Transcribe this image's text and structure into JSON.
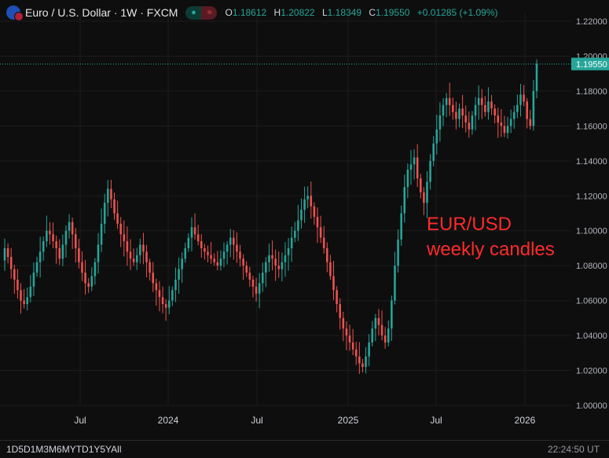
{
  "header": {
    "title": "Euro / U.S. Dollar · 1W · FXCM",
    "pill_buy": "●",
    "pill_sell": "≈",
    "ohlc": [
      {
        "label": "O",
        "value": "1.18612"
      },
      {
        "label": "H",
        "value": "1.20822"
      },
      {
        "label": "L",
        "value": "1.18349"
      },
      {
        "label": "C",
        "value": "1.19550"
      },
      {
        "label": "",
        "value": "+0.01285 (+1.09%)"
      }
    ]
  },
  "annotation": {
    "line1": "EUR/USD",
    "line2": "weekly candles"
  },
  "price_label": "1.19550",
  "bottom": {
    "ranges": "1D5D1M3M6MYTD1Y5YAll",
    "clock": "22:24:50 UT"
  },
  "colors": {
    "up": "#26a69a",
    "down": "#ef5350",
    "background": "#0e0e0e",
    "grid": "#1c1c1c",
    "annotation": "#ff2a2a"
  },
  "chart_data": {
    "type": "candlestick",
    "interval": "1W",
    "ylim": [
      1.0,
      1.22
    ],
    "y_ticks": [
      "1.22000",
      "1.20000",
      "1.18000",
      "1.16000",
      "1.14000",
      "1.12000",
      "1.10000",
      "1.08000",
      "1.06000",
      "1.04000",
      "1.02000",
      "1.00000"
    ],
    "x_ticks": [
      "Jul",
      "2024",
      "Jul",
      "2025",
      "Jul",
      "2026"
    ],
    "last_price": 1.1955,
    "closes": [
      1.09,
      1.085,
      1.078,
      1.072,
      1.066,
      1.06,
      1.058,
      1.062,
      1.068,
      1.076,
      1.082,
      1.088,
      1.094,
      1.1,
      1.098,
      1.094,
      1.09,
      1.084,
      1.092,
      1.1,
      1.105,
      1.098,
      1.09,
      1.082,
      1.076,
      1.07,
      1.068,
      1.074,
      1.082,
      1.092,
      1.104,
      1.116,
      1.124,
      1.118,
      1.11,
      1.104,
      1.098,
      1.094,
      1.088,
      1.084,
      1.082,
      1.086,
      1.092,
      1.088,
      1.082,
      1.076,
      1.07,
      1.066,
      1.062,
      1.058,
      1.056,
      1.06,
      1.066,
      1.072,
      1.078,
      1.084,
      1.09,
      1.096,
      1.102,
      1.098,
      1.094,
      1.09,
      1.088,
      1.086,
      1.084,
      1.082,
      1.08,
      1.084,
      1.088,
      1.092,
      1.096,
      1.092,
      1.088,
      1.084,
      1.08,
      1.076,
      1.072,
      1.068,
      1.064,
      1.07,
      1.076,
      1.082,
      1.086,
      1.084,
      1.08,
      1.078,
      1.082,
      1.086,
      1.09,
      1.096,
      1.1,
      1.106,
      1.112,
      1.118,
      1.12,
      1.114,
      1.108,
      1.102,
      1.096,
      1.09,
      1.082,
      1.074,
      1.066,
      1.058,
      1.05,
      1.044,
      1.04,
      1.036,
      1.032,
      1.028,
      1.024,
      1.022,
      1.028,
      1.036,
      1.044,
      1.05,
      1.046,
      1.04,
      1.036,
      1.044,
      1.06,
      1.08,
      1.095,
      1.11,
      1.125,
      1.135,
      1.138,
      1.142,
      1.13,
      1.122,
      1.116,
      1.128,
      1.14,
      1.15,
      1.158,
      1.166,
      1.172,
      1.176,
      1.172,
      1.168,
      1.164,
      1.17,
      1.166,
      1.162,
      1.158,
      1.166,
      1.172,
      1.176,
      1.172,
      1.168,
      1.174,
      1.17,
      1.166,
      1.162,
      1.16,
      1.156,
      1.16,
      1.164,
      1.168,
      1.172,
      1.178,
      1.174,
      1.164,
      1.16,
      1.18,
      1.1955
    ]
  }
}
